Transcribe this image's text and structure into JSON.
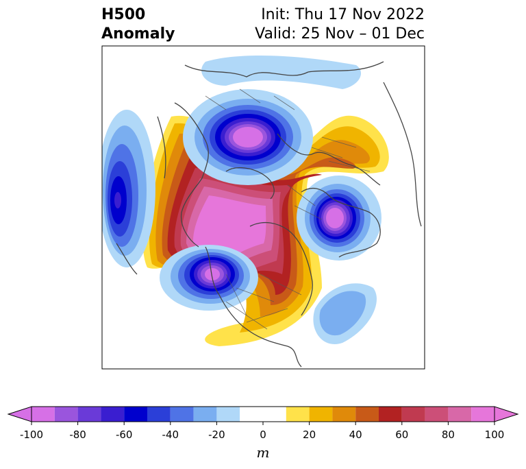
{
  "title": {
    "line1_left": "H500",
    "line2_left": "Anomaly",
    "line1_right": "Init: Thu 17 Nov 2022",
    "line2_right": "Valid: 25 Nov – 01 Dec"
  },
  "colorbar": {
    "unit": "m",
    "ticks": [
      "-100",
      "-80",
      "-60",
      "-40",
      "-20",
      "0",
      "20",
      "40",
      "60",
      "80",
      "100"
    ],
    "levels": [
      -100,
      -90,
      -80,
      -70,
      -60,
      -50,
      -40,
      -30,
      -20,
      -10,
      10,
      20,
      30,
      40,
      50,
      60,
      70,
      80,
      90,
      100
    ],
    "colors": [
      "#d670e6",
      "#9a55dd",
      "#6a3ad8",
      "#3a1ed0",
      "#0000cd",
      "#2b3fd8",
      "#4f73e6",
      "#7aaef0",
      "#b0d8f8",
      "#ffffff",
      "#ffe24a",
      "#f0b400",
      "#e08a0a",
      "#c85a18",
      "#b22222",
      "#c03a50",
      "#cc4f78",
      "#d868a8",
      "#e676da"
    ],
    "extend_low_color": "#d670e6",
    "extend_high_color": "#e676da"
  },
  "map": {
    "anomaly_centers": [
      {
        "label": "negative-greenland",
        "sign": "negative",
        "peak_m": -100
      },
      {
        "label": "negative-north-pacific",
        "sign": "negative",
        "peak_m": -80
      },
      {
        "label": "negative-scandinavia",
        "sign": "negative",
        "peak_m": -100
      },
      {
        "label": "negative-west-canada",
        "sign": "negative",
        "peak_m": -100
      },
      {
        "label": "negative-mid-atlantic",
        "sign": "negative",
        "peak_m": -30
      },
      {
        "label": "positive-alaska-arctic",
        "sign": "positive",
        "peak_m": 100
      },
      {
        "label": "positive-central-canada",
        "sign": "positive",
        "peak_m": 60
      },
      {
        "label": "positive-siberia",
        "sign": "positive",
        "peak_m": 20
      }
    ]
  }
}
